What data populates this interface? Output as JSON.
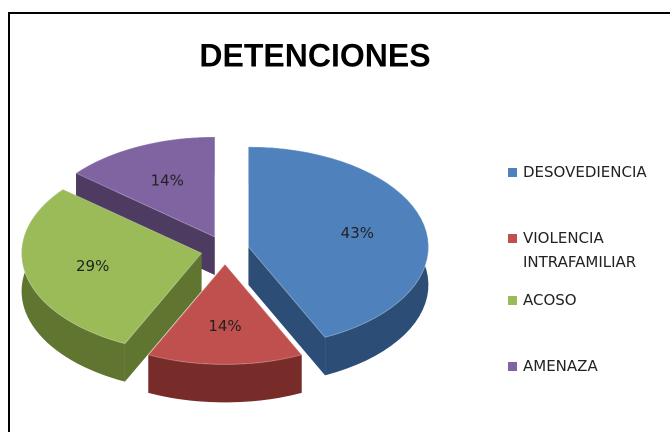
{
  "chart_data": {
    "type": "pie",
    "title": "DETENCIONES",
    "categories": [
      "DESOVEDIENCIA",
      "VIOLENCIA INTRAFAMILIAR",
      "ACOSO",
      "AMENAZA"
    ],
    "values": [
      43,
      14,
      29,
      14
    ],
    "value_labels": [
      "43%",
      "14%",
      "29%",
      "14%"
    ],
    "colors": [
      "#4f81bd",
      "#c0504d",
      "#9bbb59",
      "#8064a2"
    ],
    "side_colors": [
      "#2c4d75",
      "#772c2a",
      "#5f7530",
      "#4d3b62"
    ],
    "legend": "right",
    "exploded": true,
    "three_d": true
  }
}
